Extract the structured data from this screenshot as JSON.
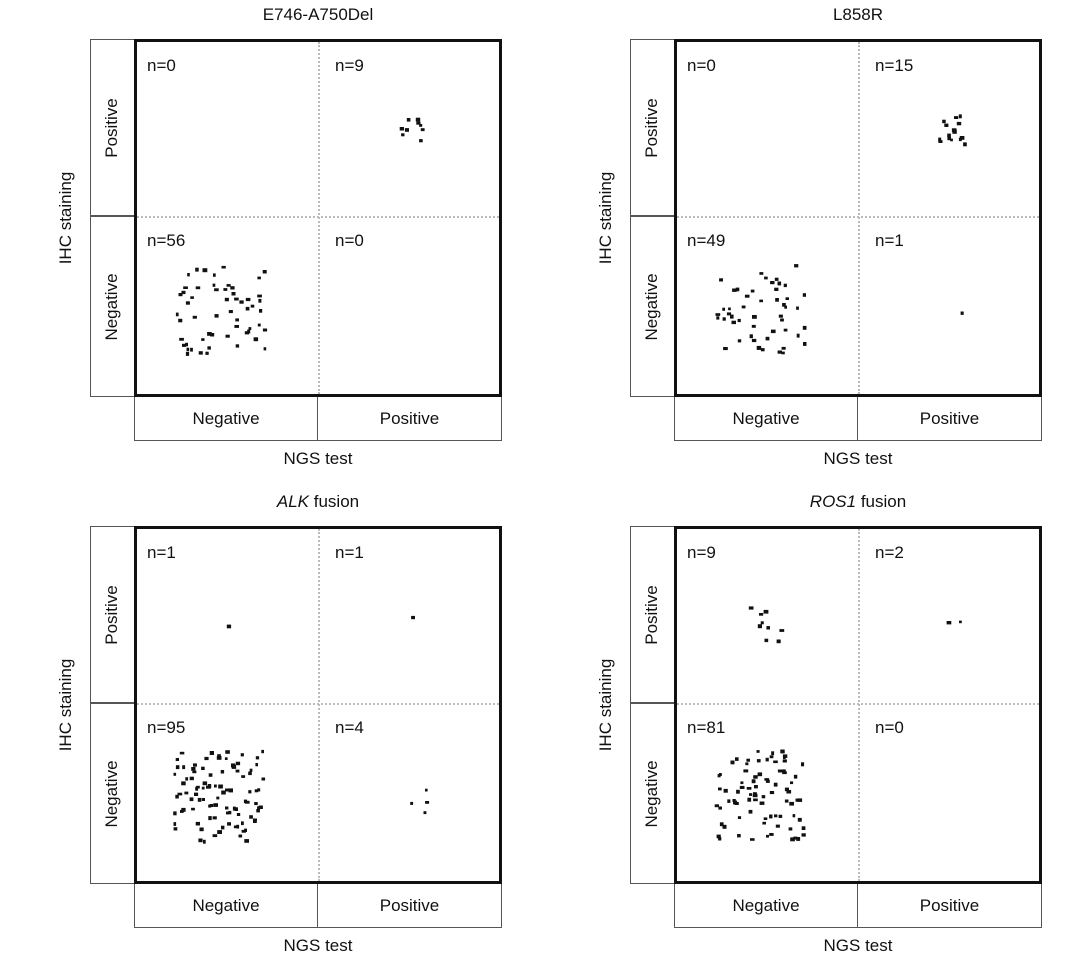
{
  "chart_data": [
    {
      "type": "scatter",
      "title": "E746-A750Del",
      "title_italic_part": "",
      "xlabel": "NGS test",
      "ylabel": "IHC staining",
      "x_categories": [
        "Negative",
        "Positive"
      ],
      "y_categories": [
        "Positive",
        "Negative"
      ],
      "counts": {
        "pos_neg": "n=0",
        "pos_pos": "n=9",
        "neg_neg": "n=56",
        "neg_pos": "n=0"
      },
      "values": {
        "pos_neg": 0,
        "pos_pos": 9,
        "neg_neg": 56,
        "neg_pos": 0
      }
    },
    {
      "type": "scatter",
      "title": "L858R",
      "title_italic_part": "",
      "xlabel": "NGS test",
      "ylabel": "IHC staining",
      "x_categories": [
        "Negative",
        "Positive"
      ],
      "y_categories": [
        "Positive",
        "Negative"
      ],
      "counts": {
        "pos_neg": "n=0",
        "pos_pos": "n=15",
        "neg_neg": "n=49",
        "neg_pos": "n=1"
      },
      "values": {
        "pos_neg": 0,
        "pos_pos": 15,
        "neg_neg": 49,
        "neg_pos": 1
      }
    },
    {
      "type": "scatter",
      "title": " fusion",
      "title_italic_part": "ALK",
      "xlabel": "NGS test",
      "ylabel": "IHC staining",
      "x_categories": [
        "Negative",
        "Positive"
      ],
      "y_categories": [
        "Positive",
        "Negative"
      ],
      "counts": {
        "pos_neg": "n=1",
        "pos_pos": "n=1",
        "neg_neg": "n=95",
        "neg_pos": "n=4"
      },
      "values": {
        "pos_neg": 1,
        "pos_pos": 1,
        "neg_neg": 95,
        "neg_pos": 4
      }
    },
    {
      "type": "scatter",
      "title": " fusion",
      "title_italic_part": "ROS1",
      "xlabel": "NGS test",
      "ylabel": "IHC staining",
      "x_categories": [
        "Negative",
        "Positive"
      ],
      "y_categories": [
        "Positive",
        "Negative"
      ],
      "counts": {
        "pos_neg": "n=9",
        "pos_pos": "n=2",
        "neg_neg": "n=81",
        "neg_pos": "n=0"
      },
      "values": {
        "pos_neg": 9,
        "pos_pos": 2,
        "neg_neg": 81,
        "neg_pos": 0
      }
    }
  ]
}
